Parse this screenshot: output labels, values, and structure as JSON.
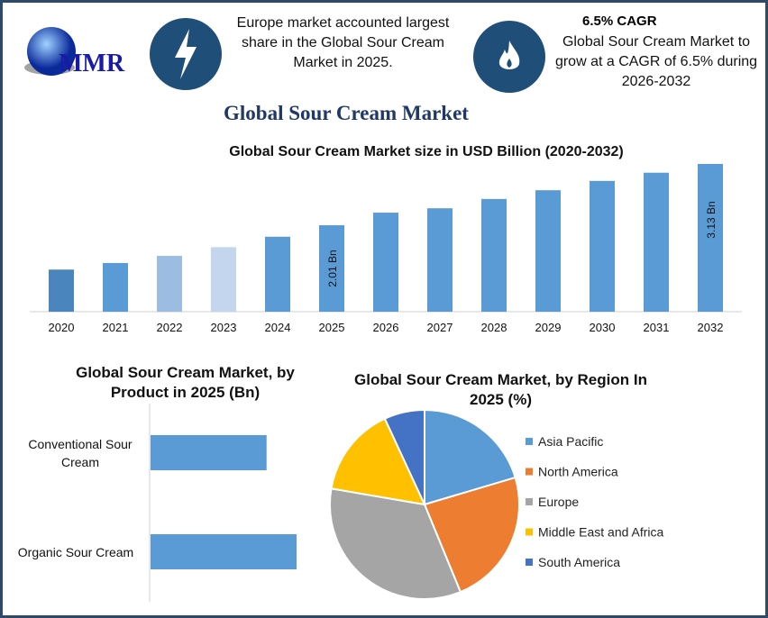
{
  "logo": {
    "text": "MMR"
  },
  "highlights": [
    {
      "icon": "lightning-icon",
      "text": "Europe market accounted largest share in the Global Sour Cream Market in 2025."
    },
    {
      "icon": "flame-icon",
      "heading": "6.5% CAGR",
      "text": "Global Sour Cream Market to grow at a CAGR of 6.5% during 2026-2032"
    }
  ],
  "main_title": "Global Sour Cream Market",
  "chart_data": [
    {
      "type": "bar",
      "title": "Global Sour Cream Market size in USD Billion (2020-2032)",
      "categories": [
        "2020",
        "2021",
        "2022",
        "2023",
        "2024",
        "2025",
        "2026",
        "2027",
        "2028",
        "2029",
        "2030",
        "2031",
        "2032"
      ],
      "values": [
        1.2,
        1.32,
        1.45,
        1.61,
        1.8,
        2.01,
        2.24,
        2.32,
        2.49,
        2.65,
        2.82,
        2.97,
        3.13
      ],
      "colors": [
        "#4a86bd",
        "#5b9bd5",
        "#9dbce2",
        "#c3d6ee",
        "#5b9bd5",
        "#5b9bd5",
        "#5b9bd5",
        "#5b9bd5",
        "#5b9bd5",
        "#5b9bd5",
        "#5b9bd5",
        "#5b9bd5",
        "#5b9bd5"
      ],
      "data_labels": {
        "2025": "2.01 Bn",
        "2032": "3.13 Bn"
      },
      "ylim": [
        0.43,
        3.13
      ],
      "grid": false
    },
    {
      "type": "bar",
      "orientation": "horizontal",
      "title": "Global Sour Cream Market, by Product in 2025 (Bn)",
      "categories": [
        "Conventional Sour Cream",
        "Organic Sour Cream"
      ],
      "values": [
        0.89,
        1.12
      ],
      "color": "#5b9bd5"
    },
    {
      "type": "pie",
      "title": "Global Sour Cream Market, by Region In 2025 (%)",
      "categories": [
        "Asia Pacific",
        "North America",
        "Europe",
        "Middle East and Africa",
        "South America"
      ],
      "values": [
        20.4,
        23.4,
        33.9,
        15.4,
        6.9
      ],
      "colors": [
        "#5b9bd5",
        "#ed7d31",
        "#a5a5a5",
        "#ffc000",
        "#4472c4"
      ],
      "legend": "right"
    }
  ]
}
